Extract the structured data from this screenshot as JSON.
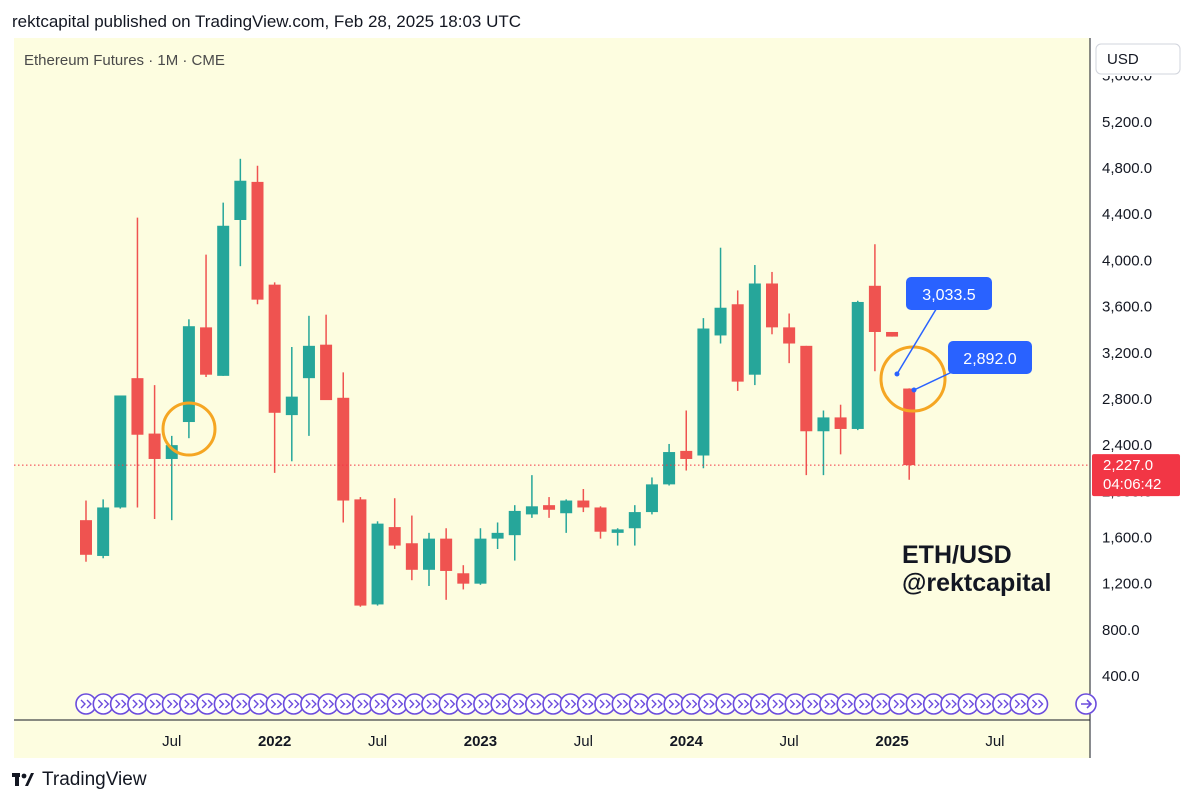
{
  "header": {
    "published": "rektcapital published on TradingView.com, Feb 28, 2025 18:03 UTC"
  },
  "footer": {
    "brand": "TradingView"
  },
  "chart_data": {
    "type": "candlestick",
    "symbol_label": "Ethereum Futures · 1M · CME",
    "currency_label": "USD",
    "watermark": [
      "ETH/USD",
      "@rektcapital"
    ],
    "y_ticks": [
      "5,200.0",
      "4,800.0",
      "4,400.0",
      "4,000.0",
      "3,600.0",
      "3,200.0",
      "2,800.0",
      "2,400.0",
      "1,600.0",
      "1,200.0",
      "800.0",
      "400.0"
    ],
    "y_tick_values": [
      5200,
      4800,
      4400,
      4000,
      3600,
      3200,
      2800,
      2400,
      1600,
      1200,
      800,
      400
    ],
    "partial_top_tick": "5,600.0",
    "partial_bottom_tick": "2,000.0",
    "x_ticks": [
      "Jul",
      "2022",
      "Jul",
      "2023",
      "Jul",
      "2024",
      "Jul",
      "2025",
      "Jul"
    ],
    "x_tick_months": [
      "2021-07",
      "2022-01",
      "2022-07",
      "2023-01",
      "2023-07",
      "2024-01",
      "2024-07",
      "2025-01",
      "2025-07"
    ],
    "x_tick_bold": [
      false,
      true,
      false,
      true,
      false,
      true,
      false,
      true,
      false
    ],
    "last_price": {
      "value": 2227.0,
      "label": "2,227.0",
      "countdown": "04:06:42"
    },
    "annotations": [
      {
        "label": "3,033.5",
        "value": 3033.5
      },
      {
        "label": "2,892.0",
        "value": 2892.0
      }
    ],
    "circled_months": [
      "2021-07",
      "2025-02"
    ],
    "colors": {
      "up": "#26a69a",
      "down": "#ef5350",
      "circle": "#f5a623",
      "callout": "#2962ff",
      "last_price": "#f23645",
      "background": "#fdfde0",
      "event_icons": "#6b4cdd"
    },
    "candles": [
      {
        "date": "2021-02",
        "o": 1750,
        "h": 1920,
        "l": 1390,
        "c": 1450
      },
      {
        "date": "2021-03",
        "o": 1440,
        "h": 1930,
        "l": 1420,
        "c": 1860
      },
      {
        "date": "2021-04",
        "o": 1860,
        "h": 2820,
        "l": 1850,
        "c": 2830
      },
      {
        "date": "2021-05",
        "o": 2980,
        "h": 4370,
        "l": 1860,
        "c": 2490
      },
      {
        "date": "2021-06",
        "o": 2500,
        "h": 2920,
        "l": 1760,
        "c": 2280
      },
      {
        "date": "2021-07",
        "o": 2280,
        "h": 2480,
        "l": 1750,
        "c": 2400
      },
      {
        "date": "2021-08",
        "o": 2600,
        "h": 3490,
        "l": 2460,
        "c": 3430
      },
      {
        "date": "2021-09",
        "o": 3420,
        "h": 4050,
        "l": 2990,
        "c": 3010
      },
      {
        "date": "2021-10",
        "o": 3000,
        "h": 4500,
        "l": 3000,
        "c": 4300
      },
      {
        "date": "2021-11",
        "o": 4350,
        "h": 4880,
        "l": 3950,
        "c": 4690
      },
      {
        "date": "2021-12",
        "o": 4680,
        "h": 4820,
        "l": 3620,
        "c": 3660
      },
      {
        "date": "2022-01",
        "o": 3790,
        "h": 3810,
        "l": 2160,
        "c": 2680
      },
      {
        "date": "2022-02",
        "o": 2660,
        "h": 3250,
        "l": 2260,
        "c": 2820
      },
      {
        "date": "2022-03",
        "o": 2980,
        "h": 3520,
        "l": 2480,
        "c": 3260
      },
      {
        "date": "2022-04",
        "o": 3270,
        "h": 3530,
        "l": 2800,
        "c": 2790
      },
      {
        "date": "2022-05",
        "o": 2810,
        "h": 3030,
        "l": 1730,
        "c": 1920
      },
      {
        "date": "2022-06",
        "o": 1930,
        "h": 1950,
        "l": 1000,
        "c": 1010
      },
      {
        "date": "2022-07",
        "o": 1020,
        "h": 1740,
        "l": 1010,
        "c": 1720
      },
      {
        "date": "2022-08",
        "o": 1690,
        "h": 1940,
        "l": 1500,
        "c": 1530
      },
      {
        "date": "2022-09",
        "o": 1550,
        "h": 1790,
        "l": 1230,
        "c": 1320
      },
      {
        "date": "2022-10",
        "o": 1320,
        "h": 1640,
        "l": 1180,
        "c": 1590
      },
      {
        "date": "2022-11",
        "o": 1590,
        "h": 1680,
        "l": 1060,
        "c": 1310
      },
      {
        "date": "2022-12",
        "o": 1290,
        "h": 1360,
        "l": 1150,
        "c": 1200
      },
      {
        "date": "2023-01",
        "o": 1200,
        "h": 1680,
        "l": 1190,
        "c": 1590
      },
      {
        "date": "2023-02",
        "o": 1590,
        "h": 1730,
        "l": 1500,
        "c": 1640
      },
      {
        "date": "2023-03",
        "o": 1620,
        "h": 1880,
        "l": 1400,
        "c": 1830
      },
      {
        "date": "2023-04",
        "o": 1800,
        "h": 2140,
        "l": 1770,
        "c": 1870
      },
      {
        "date": "2023-05",
        "o": 1880,
        "h": 1950,
        "l": 1770,
        "c": 1840
      },
      {
        "date": "2023-06",
        "o": 1810,
        "h": 1930,
        "l": 1640,
        "c": 1920
      },
      {
        "date": "2023-07",
        "o": 1920,
        "h": 2020,
        "l": 1820,
        "c": 1860
      },
      {
        "date": "2023-08",
        "o": 1860,
        "h": 1870,
        "l": 1590,
        "c": 1650
      },
      {
        "date": "2023-09",
        "o": 1640,
        "h": 1680,
        "l": 1530,
        "c": 1670
      },
      {
        "date": "2023-10",
        "o": 1680,
        "h": 1880,
        "l": 1530,
        "c": 1820
      },
      {
        "date": "2023-11",
        "o": 1820,
        "h": 2120,
        "l": 1800,
        "c": 2060
      },
      {
        "date": "2023-12",
        "o": 2060,
        "h": 2410,
        "l": 2050,
        "c": 2340
      },
      {
        "date": "2024-01",
        "o": 2350,
        "h": 2700,
        "l": 2180,
        "c": 2280
      },
      {
        "date": "2024-02",
        "o": 2310,
        "h": 3500,
        "l": 2200,
        "c": 3410
      },
      {
        "date": "2024-03",
        "o": 3350,
        "h": 4110,
        "l": 3280,
        "c": 3590
      },
      {
        "date": "2024-04",
        "o": 3620,
        "h": 3740,
        "l": 2870,
        "c": 2950
      },
      {
        "date": "2024-05",
        "o": 3010,
        "h": 3960,
        "l": 2920,
        "c": 3800
      },
      {
        "date": "2024-06",
        "o": 3800,
        "h": 3900,
        "l": 3360,
        "c": 3420
      },
      {
        "date": "2024-07",
        "o": 3420,
        "h": 3540,
        "l": 3110,
        "c": 3280
      },
      {
        "date": "2024-08",
        "o": 3260,
        "h": 3260,
        "l": 2140,
        "c": 2520
      },
      {
        "date": "2024-09",
        "o": 2520,
        "h": 2700,
        "l": 2140,
        "c": 2640
      },
      {
        "date": "2024-10",
        "o": 2640,
        "h": 2750,
        "l": 2320,
        "c": 2540
      },
      {
        "date": "2024-11",
        "o": 2540,
        "h": 3650,
        "l": 2530,
        "c": 3640
      },
      {
        "date": "2024-12",
        "o": 3780,
        "h": 4140,
        "l": 3040,
        "c": 3380
      },
      {
        "date": "2025-01",
        "o": 3380,
        "h": 3380,
        "l": 3340,
        "c": 3340
      },
      {
        "date": "2025-02",
        "o": 2890,
        "h": 2892,
        "l": 2100,
        "c": 2227
      }
    ]
  }
}
